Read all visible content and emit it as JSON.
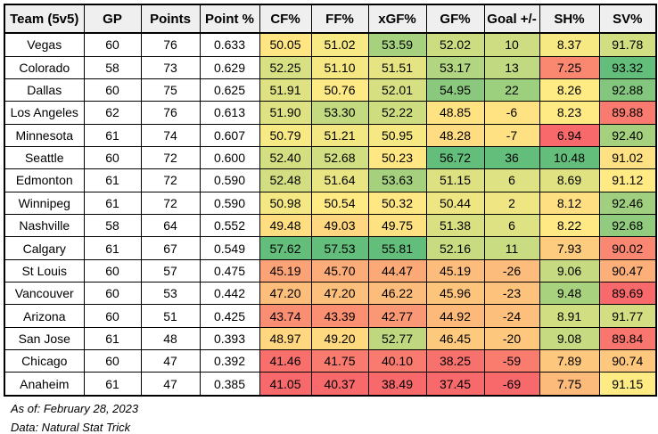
{
  "table": {
    "columns": [
      "Team (5v5)",
      "GP",
      "Points",
      "Point %",
      "CF%",
      "FF%",
      "xGF%",
      "GF%",
      "Goal +/-",
      "SH%",
      "SV%"
    ],
    "heatmap_columns": [
      4,
      5,
      6,
      7,
      8,
      9,
      10
    ],
    "rows": [
      [
        "Vegas",
        "60",
        "76",
        "0.633",
        "50.05",
        "51.02",
        "53.59",
        "52.02",
        "10",
        "8.37",
        "91.78"
      ],
      [
        "Colorado",
        "58",
        "73",
        "0.629",
        "52.25",
        "51.10",
        "51.51",
        "53.17",
        "13",
        "7.25",
        "93.32"
      ],
      [
        "Dallas",
        "60",
        "75",
        "0.625",
        "51.91",
        "50.76",
        "52.01",
        "54.95",
        "22",
        "8.26",
        "92.88"
      ],
      [
        "Los Angeles",
        "62",
        "76",
        "0.613",
        "51.90",
        "53.30",
        "52.22",
        "48.85",
        "-6",
        "8.23",
        "89.88"
      ],
      [
        "Minnesota",
        "61",
        "74",
        "0.607",
        "50.79",
        "51.21",
        "50.95",
        "48.28",
        "-7",
        "6.94",
        "92.40"
      ],
      [
        "Seattle",
        "60",
        "72",
        "0.600",
        "52.40",
        "52.68",
        "50.23",
        "56.72",
        "36",
        "10.48",
        "91.02"
      ],
      [
        "Edmonton",
        "61",
        "72",
        "0.590",
        "52.48",
        "51.64",
        "53.63",
        "51.15",
        "6",
        "8.69",
        "91.12"
      ],
      [
        "Winnipeg",
        "61",
        "72",
        "0.590",
        "50.98",
        "50.54",
        "50.32",
        "50.44",
        "2",
        "8.12",
        "92.46"
      ],
      [
        "Nashville",
        "58",
        "64",
        "0.552",
        "49.48",
        "49.03",
        "49.75",
        "51.38",
        "6",
        "8.22",
        "92.68"
      ],
      [
        "Calgary",
        "61",
        "67",
        "0.549",
        "57.62",
        "57.53",
        "55.81",
        "52.16",
        "11",
        "7.93",
        "90.02"
      ],
      [
        "St Louis",
        "60",
        "57",
        "0.475",
        "45.19",
        "45.70",
        "44.47",
        "45.19",
        "-26",
        "9.06",
        "90.47"
      ],
      [
        "Vancouver",
        "60",
        "53",
        "0.442",
        "47.20",
        "47.20",
        "46.22",
        "45.96",
        "-23",
        "9.48",
        "89.69"
      ],
      [
        "Arizona",
        "60",
        "51",
        "0.425",
        "43.74",
        "43.39",
        "42.77",
        "44.92",
        "-24",
        "8.91",
        "91.77"
      ],
      [
        "San Jose",
        "61",
        "48",
        "0.393",
        "48.97",
        "49.20",
        "52.77",
        "46.45",
        "-20",
        "9.08",
        "89.84"
      ],
      [
        "Chicago",
        "60",
        "47",
        "0.392",
        "41.46",
        "41.75",
        "40.10",
        "38.25",
        "-59",
        "7.89",
        "90.74"
      ],
      [
        "Anaheim",
        "61",
        "47",
        "0.385",
        "41.05",
        "40.37",
        "38.49",
        "37.45",
        "-69",
        "7.75",
        "91.15"
      ]
    ]
  },
  "footer": {
    "as_of": "As of: February 28, 2023",
    "source": "Data: Natural Stat Trick"
  },
  "colors": {
    "heat_min": "#F8696B",
    "heat_mid": "#FFEB84",
    "heat_max": "#63BE7B",
    "header_bg": "#EFEFEF",
    "border": "#000000",
    "text": "#000000"
  }
}
